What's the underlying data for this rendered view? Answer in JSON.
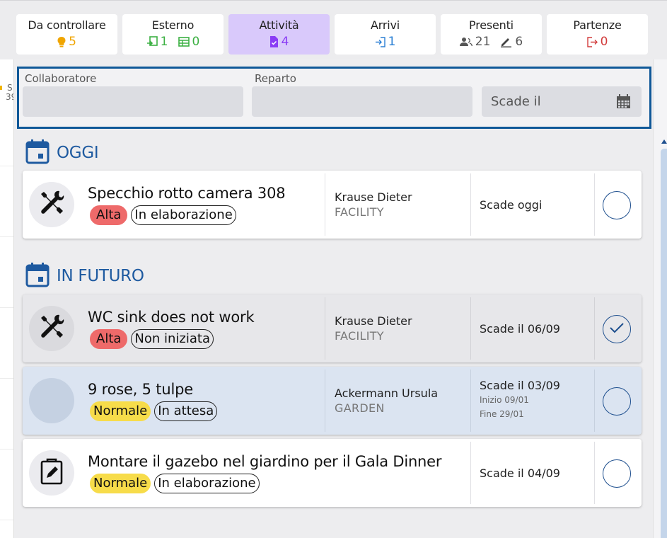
{
  "tabs": [
    {
      "label": "Da controllare",
      "counts": [
        {
          "icon": "lightbulb-icon",
          "value": "5",
          "color": "#f0a500"
        }
      ]
    },
    {
      "label": "Esterno",
      "counts": [
        {
          "icon": "transfer-icon",
          "value": "1",
          "color": "#3cb043"
        },
        {
          "icon": "table-icon",
          "value": "0",
          "color": "#3cb043"
        }
      ]
    },
    {
      "label": "Attività",
      "active": true,
      "counts": [
        {
          "icon": "task-icon",
          "value": "4",
          "color": "#8a3cf5"
        }
      ]
    },
    {
      "label": "Arrivi",
      "counts": [
        {
          "icon": "login-icon",
          "value": "1",
          "color": "#2a7fd4"
        }
      ]
    },
    {
      "label": "Presenti",
      "counts": [
        {
          "icon": "guests-icon",
          "value": "21",
          "color": "#555"
        },
        {
          "icon": "pencil-icon",
          "value": "6",
          "color": "#555"
        }
      ]
    },
    {
      "label": "Partenze",
      "counts": [
        {
          "icon": "logout-icon",
          "value": "0",
          "color": "#d23c3c"
        }
      ]
    }
  ],
  "side_calendar": {
    "day_letter": "S",
    "week_number": "39"
  },
  "filters": {
    "collaboratore_label": "Collaboratore",
    "reparto_label": "Reparto",
    "scade_placeholder": "Scade il"
  },
  "sections": [
    {
      "title": "OGGI",
      "tasks": [
        {
          "title": "Specchio rotto camera 308",
          "priority": "Alta",
          "status": "In elaborazione",
          "person": "Krause Dieter",
          "department": "FACILITY",
          "due": "Scade oggi",
          "icon": "tools-icon",
          "checked": false,
          "style": "white"
        }
      ]
    },
    {
      "title": "IN FUTURO",
      "tasks": [
        {
          "title": "WC sink does not work",
          "priority": "Alta",
          "status": "Non iniziata",
          "person": "Krause Dieter",
          "department": "FACILITY",
          "due": "Scade il 06/09",
          "icon": "tools-icon",
          "checked": true,
          "style": "grey"
        },
        {
          "title": "9 rose, 5 tulpe",
          "priority": "Normale",
          "status": "In attesa",
          "person": "Ackermann Ursula",
          "department": "GARDEN",
          "due": "Scade il 03/09",
          "start": "Inizio 09/01",
          "end": "Fine 29/01",
          "icon": "",
          "checked": false,
          "style": "blue"
        },
        {
          "title": "Montare il gazebo nel giardino per il Gala Dinner",
          "priority": "Normale",
          "status": "In elaborazione",
          "person": "",
          "department": "",
          "due": "Scade il 04/09",
          "icon": "clipboard-edit-icon",
          "checked": false,
          "style": "white"
        }
      ]
    }
  ],
  "colors": {
    "accent": "#1e5aa0",
    "active_tab": "#d9c9fb",
    "alta": "#ee6a6a",
    "normale": "#f7dc4a",
    "filter_border": "#0f5898"
  }
}
